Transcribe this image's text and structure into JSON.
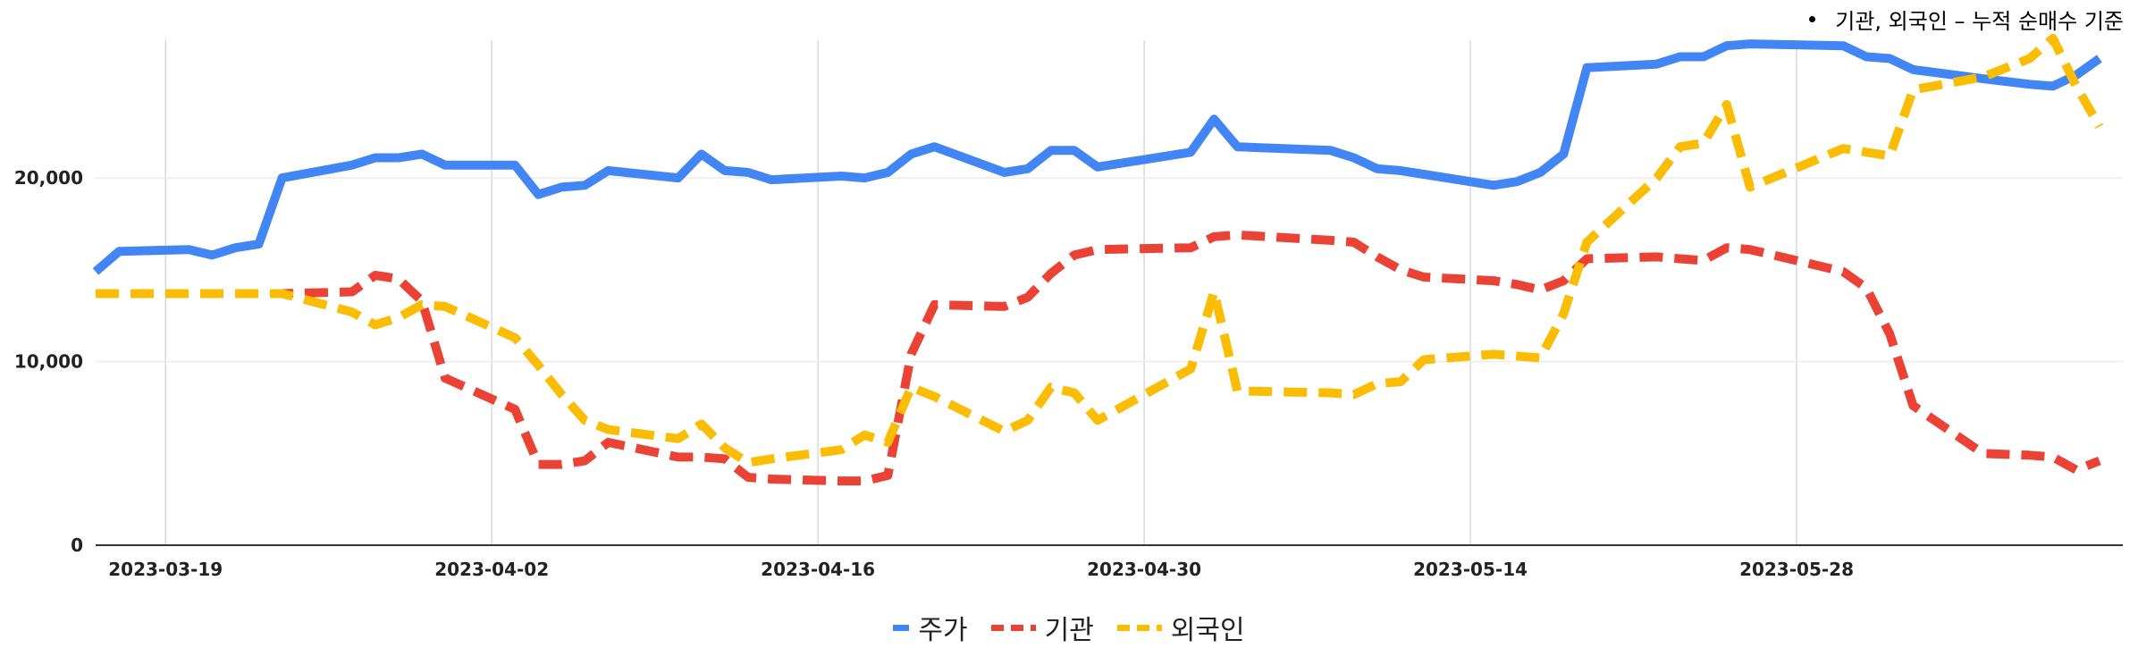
{
  "annotation": "기관, 외국인 – 누적 순매수 기준",
  "chart_data": {
    "type": "line",
    "x_tick_labels": [
      "2023-03-19",
      "2023-04-02",
      "2023-04-16",
      "2023-04-30",
      "2023-05-14",
      "2023-05-28"
    ],
    "x_ticks": [
      "2023-03-19",
      "2023-04-02",
      "2023-04-16",
      "2023-04-30",
      "2023-05-14",
      "2023-05-28"
    ],
    "y_tick_labels": [
      "0",
      "10,000",
      "20,000"
    ],
    "y_ticks": [
      0,
      10000,
      20000
    ],
    "ylim": [
      0,
      27500
    ],
    "xlim": [
      "2023-03-16",
      "2023-06-11"
    ],
    "grid": true,
    "legend_position": "bottom",
    "x": [
      "2023-03-16",
      "2023-03-17",
      "2023-03-20",
      "2023-03-21",
      "2023-03-22",
      "2023-03-23",
      "2023-03-24",
      "2023-03-27",
      "2023-03-28",
      "2023-03-29",
      "2023-03-30",
      "2023-03-31",
      "2023-04-03",
      "2023-04-04",
      "2023-04-05",
      "2023-04-06",
      "2023-04-07",
      "2023-04-10",
      "2023-04-11",
      "2023-04-12",
      "2023-04-13",
      "2023-04-14",
      "2023-04-17",
      "2023-04-18",
      "2023-04-19",
      "2023-04-20",
      "2023-04-21",
      "2023-04-24",
      "2023-04-25",
      "2023-04-26",
      "2023-04-27",
      "2023-04-28",
      "2023-05-02",
      "2023-05-03",
      "2023-05-04",
      "2023-05-08",
      "2023-05-09",
      "2023-05-10",
      "2023-05-11",
      "2023-05-12",
      "2023-05-15",
      "2023-05-16",
      "2023-05-17",
      "2023-05-18",
      "2023-05-19",
      "2023-05-22",
      "2023-05-23",
      "2023-05-24",
      "2023-05-25",
      "2023-05-26",
      "2023-05-30",
      "2023-05-31",
      "2023-06-01",
      "2023-06-02",
      "2023-06-05",
      "2023-06-07",
      "2023-06-08",
      "2023-06-09",
      "2023-06-10"
    ],
    "series": [
      {
        "name": "주가",
        "color": "#4285f4",
        "dash": "solid",
        "values": [
          14900,
          16000,
          16100,
          15800,
          16200,
          16400,
          20000,
          20700,
          21100,
          21100,
          21300,
          20700,
          20700,
          19100,
          19500,
          19600,
          20400,
          20000,
          21300,
          20400,
          20300,
          19900,
          20100,
          20000,
          20300,
          21300,
          21700,
          20300,
          20500,
          21500,
          21500,
          20600,
          21400,
          23200,
          21700,
          21500,
          21100,
          20500,
          20400,
          20200,
          19600,
          19800,
          20300,
          21300,
          26000,
          26200,
          26600,
          26600,
          27200,
          27300,
          27200,
          26600,
          26500,
          25900,
          25400,
          25100,
          25000,
          25600,
          26500
        ]
      },
      {
        "name": "기관",
        "color": "#ea4335",
        "dash": "dashed",
        "values": [
          13700,
          13700,
          13700,
          13700,
          13700,
          13700,
          13700,
          13800,
          14700,
          14500,
          13300,
          9100,
          7400,
          4400,
          4400,
          4600,
          5600,
          4800,
          4800,
          4700,
          3700,
          3600,
          3500,
          3500,
          3800,
          10400,
          13100,
          13000,
          13500,
          14800,
          15800,
          16100,
          16200,
          16800,
          16900,
          16600,
          16500,
          15700,
          15000,
          14600,
          14400,
          14200,
          13900,
          14400,
          15600,
          15700,
          15600,
          15500,
          16200,
          16100,
          14900,
          14000,
          11500,
          7600,
          5000,
          4900,
          4800,
          4100,
          4600
        ]
      },
      {
        "name": "외국인",
        "color": "#fbbc04",
        "dash": "dashed",
        "values": [
          13700,
          13700,
          13700,
          13700,
          13700,
          13700,
          13700,
          12700,
          12000,
          12400,
          13100,
          13000,
          11300,
          9800,
          8200,
          6800,
          6300,
          5800,
          6600,
          5300,
          4500,
          4700,
          5200,
          6000,
          5600,
          8600,
          8100,
          6200,
          6800,
          8600,
          8300,
          6800,
          9600,
          13800,
          8400,
          8300,
          8200,
          8800,
          8900,
          10100,
          10400,
          10300,
          10200,
          12600,
          16500,
          20000,
          21700,
          21900,
          24000,
          19500,
          21600,
          21400,
          21200,
          24800,
          25500,
          26500,
          27600,
          25000,
          22800
        ]
      }
    ]
  }
}
